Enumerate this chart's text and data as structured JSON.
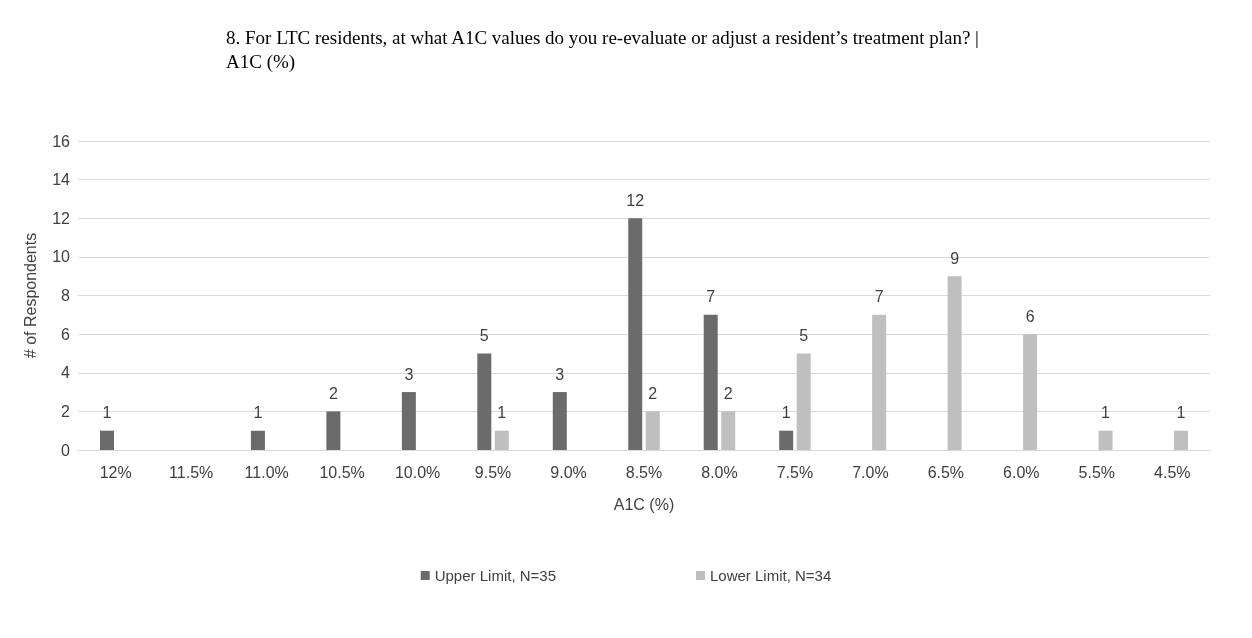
{
  "chart_data": {
    "type": "bar",
    "title": "8. For LTC residents, at what A1C values do you re-evaluate or adjust a resident’s treatment plan? | A1C (%)",
    "xlabel": "A1C (%)",
    "ylabel": "# of Respondents",
    "categories": [
      "12%",
      "11.5%",
      "11.0%",
      "10.5%",
      "10.0%",
      "9.5%",
      "9.0%",
      "8.5%",
      "8.0%",
      "7.5%",
      "7.0%",
      "6.5%",
      "6.0%",
      "5.5%",
      "4.5%"
    ],
    "series": [
      {
        "name": "Upper Limit, N=35",
        "color": "#6b6b6b",
        "values": [
          1,
          null,
          1,
          2,
          3,
          5,
          3,
          12,
          7,
          1,
          null,
          null,
          null,
          null,
          null
        ]
      },
      {
        "name": "Lower Limit, N=34",
        "color": "#bfbfbf",
        "values": [
          null,
          null,
          null,
          null,
          null,
          1,
          null,
          2,
          2,
          5,
          7,
          9,
          6,
          1,
          1
        ]
      }
    ],
    "ylim": [
      0,
      16
    ],
    "yticks": [
      0,
      2,
      4,
      6,
      8,
      10,
      12,
      14,
      16
    ],
    "grid": "y",
    "legend": "bottom",
    "data_labels": true
  }
}
